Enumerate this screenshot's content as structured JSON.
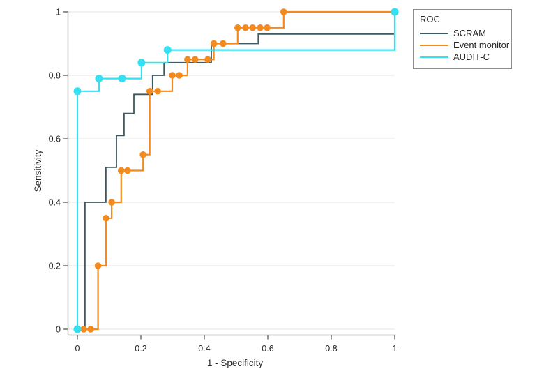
{
  "chart_data": {
    "type": "line",
    "subtype": "roc-step-curve",
    "title": "",
    "legend_title": "ROC",
    "xlabel": "1 - Specificity",
    "ylabel": "Sensitivity",
    "xlim": [
      0,
      1
    ],
    "ylim": [
      0,
      1
    ],
    "grid": "horizontal-only",
    "legend_position": "top-right",
    "axis_color": "#4d4d4d",
    "grid_color": "#e9e9e7",
    "x_ticks": [
      0,
      0.2,
      0.4,
      0.6,
      0.8,
      1
    ],
    "x_tick_labels": [
      "0",
      "0.2",
      "0.4",
      "0.6",
      "0.8",
      "1"
    ],
    "y_ticks": [
      0,
      0.2,
      0.4,
      0.6,
      0.8,
      1
    ],
    "y_tick_labels": [
      "0",
      "0.2",
      "0.4",
      "0.6",
      "0.8",
      "1"
    ],
    "series": [
      {
        "name": "SCRAM",
        "color": "#3d5961",
        "line_width": 1.8,
        "marker": false,
        "marker_radius": 0,
        "points": [
          [
            0.024,
            0
          ],
          [
            0.024,
            0.4
          ],
          [
            0.09,
            0.51
          ],
          [
            0.123,
            0.61
          ],
          [
            0.147,
            0.68
          ],
          [
            0.178,
            0.74
          ],
          [
            0.237,
            0.8
          ],
          [
            0.273,
            0.84
          ],
          [
            0.422,
            0.9
          ],
          [
            0.57,
            0.93
          ],
          [
            1,
            1
          ]
        ]
      },
      {
        "name": "Event monitor",
        "color": "#f28a1e",
        "line_width": 2.2,
        "marker": true,
        "marker_radius": 4.8,
        "skip_last_marker": true,
        "points": [
          [
            0.02,
            0
          ],
          [
            0.042,
            0
          ],
          [
            0.065,
            0.2
          ],
          [
            0.09,
            0.35
          ],
          [
            0.108,
            0.4
          ],
          [
            0.138,
            0.5
          ],
          [
            0.158,
            0.5
          ],
          [
            0.207,
            0.55
          ],
          [
            0.228,
            0.75
          ],
          [
            0.253,
            0.75
          ],
          [
            0.299,
            0.8
          ],
          [
            0.321,
            0.8
          ],
          [
            0.347,
            0.85
          ],
          [
            0.371,
            0.85
          ],
          [
            0.411,
            0.85
          ],
          [
            0.43,
            0.9
          ],
          [
            0.459,
            0.9
          ],
          [
            0.505,
            0.95
          ],
          [
            0.53,
            0.95
          ],
          [
            0.552,
            0.95
          ],
          [
            0.576,
            0.95
          ],
          [
            0.598,
            0.95
          ],
          [
            0.65,
            1
          ],
          [
            1,
            1
          ]
        ]
      },
      {
        "name": "AUDIT-C",
        "color": "#35e0f2",
        "line_width": 2.2,
        "marker": true,
        "marker_radius": 5.5,
        "skip_last_marker": false,
        "points": [
          [
            0,
            0
          ],
          [
            0,
            0.75
          ],
          [
            0.068,
            0.79
          ],
          [
            0.141,
            0.79
          ],
          [
            0.202,
            0.84
          ],
          [
            0.284,
            0.88
          ],
          [
            1,
            1
          ]
        ]
      }
    ]
  }
}
